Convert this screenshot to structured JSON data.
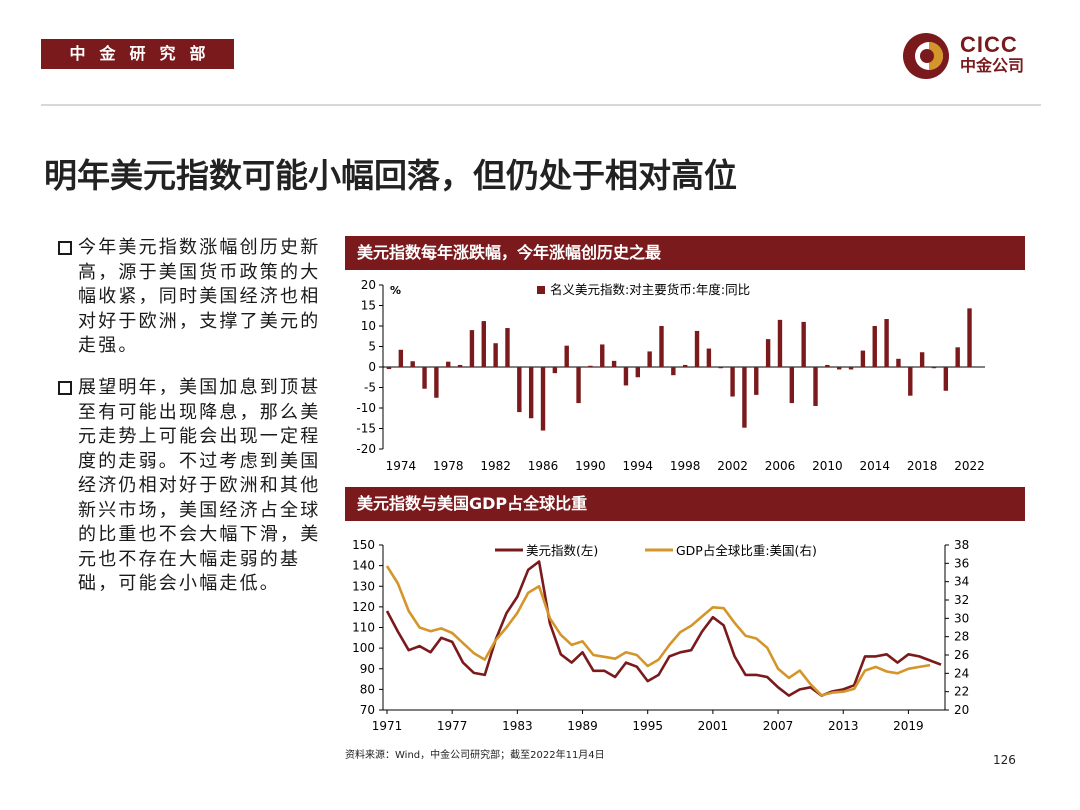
{
  "header": {
    "department": "中金研究部",
    "logo_en": "CICC",
    "logo_cn": "中金公司"
  },
  "page_title": "明年美元指数可能小幅回落，但仍处于相对高位",
  "bullets": [
    "今年美元指数涨幅创历史新高，源于美国货币政策的大幅收紧，同时美国经济也相对好于欧洲，支撑了美元的走强。",
    "展望明年，美国加息到顶甚至有可能出现降息，那么美元走势上可能会出现一定程度的走弱。不过考虑到美国经济仍相对好于欧洲和其他新兴市场，美国经济占全球的比重也不会大幅下滑，美元也不存在大幅走弱的基础，可能会小幅走低。"
  ],
  "colors": {
    "brand": "#7a1a1c",
    "bar": "#7a1a1c",
    "line_usd": "#7a1a1c",
    "line_gdp": "#d4952a"
  },
  "chart_data": [
    {
      "type": "bar",
      "title": "美元指数每年涨跌幅，今年涨幅创历史之最",
      "legend": "名义美元指数:对主要货币:年度:同比",
      "ylabel": "%",
      "ylim": [
        -20,
        20
      ],
      "yticks": [
        20,
        15,
        10,
        5,
        0,
        -5,
        -10,
        -15,
        -20
      ],
      "xticks": [
        1974,
        1978,
        1982,
        1986,
        1990,
        1994,
        1998,
        2002,
        2006,
        2010,
        2014,
        2018,
        2022
      ],
      "categories": [
        1973,
        1974,
        1975,
        1976,
        1977,
        1978,
        1979,
        1980,
        1981,
        1982,
        1983,
        1984,
        1985,
        1986,
        1987,
        1988,
        1989,
        1990,
        1991,
        1992,
        1993,
        1994,
        1995,
        1996,
        1997,
        1998,
        1999,
        2000,
        2001,
        2002,
        2003,
        2004,
        2005,
        2006,
        2007,
        2008,
        2009,
        2010,
        2011,
        2012,
        2013,
        2014,
        2015,
        2016,
        2017,
        2018,
        2019,
        2020,
        2021,
        2022
      ],
      "values": [
        -0.5,
        4.2,
        1.4,
        -5.3,
        -7.5,
        1.3,
        0.5,
        9.0,
        11.2,
        5.8,
        9.5,
        -11.0,
        -12.5,
        -15.5,
        -1.5,
        5.2,
        -8.8,
        0.3,
        5.5,
        1.5,
        -4.5,
        -2.5,
        3.8,
        10.0,
        -2.0,
        0.5,
        8.8,
        4.5,
        -0.3,
        -7.2,
        -14.8,
        -6.8,
        6.8,
        11.5,
        -8.8,
        11.0,
        -9.5,
        0.5,
        -0.6,
        -0.6,
        4.0,
        10.0,
        11.7,
        2.0,
        -7.0,
        3.6,
        -0.3,
        -5.8,
        4.8,
        14.3
      ]
    },
    {
      "type": "line",
      "title": "美元指数与美国GDP占全球比重",
      "x": [
        1971,
        1972,
        1973,
        1974,
        1975,
        1976,
        1977,
        1978,
        1979,
        1980,
        1981,
        1982,
        1983,
        1984,
        1985,
        1986,
        1987,
        1988,
        1989,
        1990,
        1991,
        1992,
        1993,
        1994,
        1995,
        1996,
        1997,
        1998,
        1999,
        2000,
        2001,
        2002,
        2003,
        2004,
        2005,
        2006,
        2007,
        2008,
        2009,
        2010,
        2011,
        2012,
        2013,
        2014,
        2015,
        2016,
        2017,
        2018,
        2019,
        2020,
        2021,
        2022
      ],
      "xticks": [
        1971,
        1977,
        1983,
        1989,
        1995,
        2001,
        2007,
        2013,
        2019
      ],
      "y_left": {
        "lim": [
          70,
          150
        ],
        "ticks": [
          150,
          140,
          130,
          120,
          110,
          100,
          90,
          80,
          70
        ]
      },
      "y_right": {
        "lim": [
          20,
          38
        ],
        "ticks": [
          38,
          36,
          34,
          32,
          30,
          28,
          26,
          24,
          22,
          20
        ]
      },
      "series": [
        {
          "name": "美元指数(左)",
          "axis": "left",
          "values": [
            118,
            108,
            99,
            101,
            98,
            105,
            103,
            93,
            88,
            87,
            104,
            117,
            125,
            138,
            142,
            112,
            97,
            93,
            98,
            89,
            89,
            86,
            93,
            91,
            84,
            87,
            96,
            98,
            99,
            108,
            115,
            111,
            96,
            87,
            87,
            86,
            81,
            77,
            80,
            81,
            77,
            79,
            80,
            82,
            96,
            96,
            97,
            93,
            97,
            96,
            94,
            92
          ]
        },
        {
          "name": "GDP占全球比重:美国(右)",
          "axis": "right",
          "values": [
            35.7,
            33.8,
            30.8,
            29.0,
            28.6,
            28.9,
            28.4,
            27.3,
            26.2,
            25.5,
            27.6,
            29.0,
            30.6,
            32.8,
            33.5,
            30.0,
            28.2,
            27.1,
            27.5,
            26.0,
            25.8,
            25.6,
            26.3,
            26.0,
            24.8,
            25.5,
            27.1,
            28.5,
            29.2,
            30.2,
            31.2,
            31.1,
            29.5,
            28.1,
            27.8,
            26.8,
            24.5,
            23.5,
            24.3,
            22.8,
            21.6,
            21.9,
            22.0,
            22.3,
            24.3,
            24.7,
            24.2,
            24.0,
            24.5,
            24.7,
            24.9,
            null
          ]
        }
      ]
    }
  ],
  "source": "资料来源：Wind，中金公司研究部；截至2022年11月4日",
  "page_number": "126"
}
